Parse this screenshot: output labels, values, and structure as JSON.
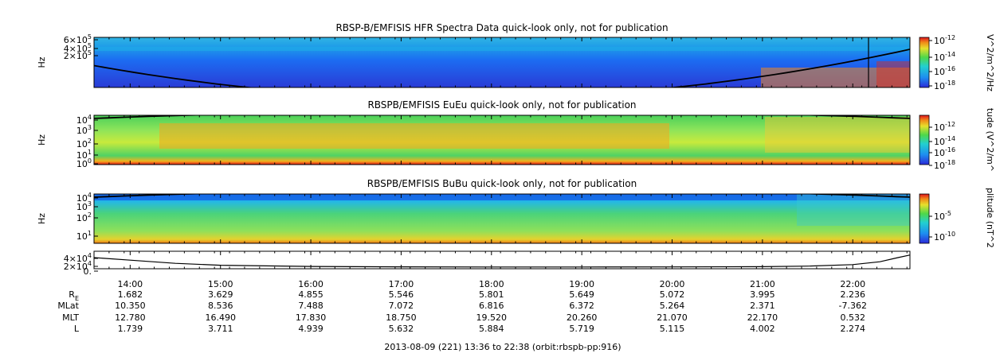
{
  "chart_data": [
    {
      "type": "heatmap",
      "title": "RBSP-B/EMFISIS  HFR Spectra Data quick-look only, not for publication",
      "ylabel": "Hz",
      "y_ticks": [
        {
          "label": "6×10",
          "sup": "5"
        },
        {
          "label": "4×10",
          "sup": "5"
        },
        {
          "label": "2×10",
          "sup": "5"
        }
      ],
      "colorbar_label": "V^2/m^2/Hz",
      "colorbar_ticks": [
        {
          "label": "10",
          "sup": "-12"
        },
        {
          "label": "10",
          "sup": "-14"
        },
        {
          "label": "10",
          "sup": "-16"
        },
        {
          "label": "10",
          "sup": "-18"
        }
      ]
    },
    {
      "type": "heatmap",
      "title": "RBSPB/EMFISIS  EuEu quick-look only, not for publication",
      "ylabel": "Hz",
      "y_ticks": [
        {
          "label": "10",
          "sup": "4"
        },
        {
          "label": "10",
          "sup": "3"
        },
        {
          "label": "10",
          "sup": "2"
        },
        {
          "label": "10",
          "sup": "1"
        },
        {
          "label": "10",
          "sup": "0"
        }
      ],
      "colorbar_label": "tude (V^2/m^",
      "colorbar_ticks": [
        {
          "label": "10",
          "sup": "-12"
        },
        {
          "label": "10",
          "sup": "-14"
        },
        {
          "label": "10",
          "sup": "-16"
        },
        {
          "label": "10",
          "sup": "-18"
        }
      ]
    },
    {
      "type": "heatmap",
      "title": "RBSPB/EMFISIS  BuBu quick-look only, not for publication",
      "ylabel": "Hz",
      "y_ticks": [
        {
          "label": "10",
          "sup": "4"
        },
        {
          "label": "10",
          "sup": "3"
        },
        {
          "label": "10",
          "sup": "2"
        },
        {
          "label": "10",
          "sup": "1"
        }
      ],
      "colorbar_label": "plitude (nT^2",
      "colorbar_ticks": [
        {
          "label": "10",
          "sup": "-5"
        },
        {
          "label": "10",
          "sup": "-10"
        }
      ]
    },
    {
      "type": "line",
      "y_ticks": [
        {
          "label": "4×10",
          "sup": "4"
        },
        {
          "label": "2×10",
          "sup": "4"
        },
        {
          "label": "0.",
          "sup": ""
        }
      ],
      "ylim": [
        0,
        45000
      ],
      "x_hours": [
        13.6,
        14.0,
        14.5,
        15.0,
        16.0,
        17.0,
        18.0,
        19.0,
        20.0,
        21.0,
        21.5,
        22.0,
        22.3,
        22.5,
        22.63
      ],
      "y": [
        30000,
        22000,
        12000,
        6000,
        2200,
        900,
        500,
        450,
        700,
        1600,
        3200,
        8000,
        17000,
        30000,
        38000
      ]
    }
  ],
  "time_axis": {
    "labels": [
      "14:00",
      "15:00",
      "16:00",
      "17:00",
      "18:00",
      "19:00",
      "20:00",
      "21:00",
      "22:00"
    ],
    "hours": [
      14,
      15,
      16,
      17,
      18,
      19,
      20,
      21,
      22
    ],
    "start_hour": 13.6,
    "end_hour": 22.633
  },
  "ephemeris": [
    {
      "label": "R",
      "sub": "E",
      "values": [
        "1.682",
        "3.629",
        "4.855",
        "5.546",
        "5.801",
        "5.649",
        "5.072",
        "3.995",
        "2.236"
      ]
    },
    {
      "label": "MLat",
      "sub": "",
      "values": [
        "10.350",
        "8.536",
        "7.488",
        "7.072",
        "6.816",
        "6.372",
        "5.264",
        "2.371",
        "-7.362"
      ]
    },
    {
      "label": "MLT",
      "sub": "",
      "values": [
        "12.780",
        "16.490",
        "17.830",
        "18.750",
        "19.520",
        "20.260",
        "21.070",
        "22.170",
        "0.532"
      ]
    },
    {
      "label": "L",
      "sub": "",
      "values": [
        "1.739",
        "3.711",
        "4.939",
        "5.632",
        "5.884",
        "5.719",
        "5.115",
        "4.002",
        "2.274"
      ]
    }
  ],
  "footer": "2013-08-09 (221) 13:36 to 22:38 (orbit:rbspb-pp:916)"
}
